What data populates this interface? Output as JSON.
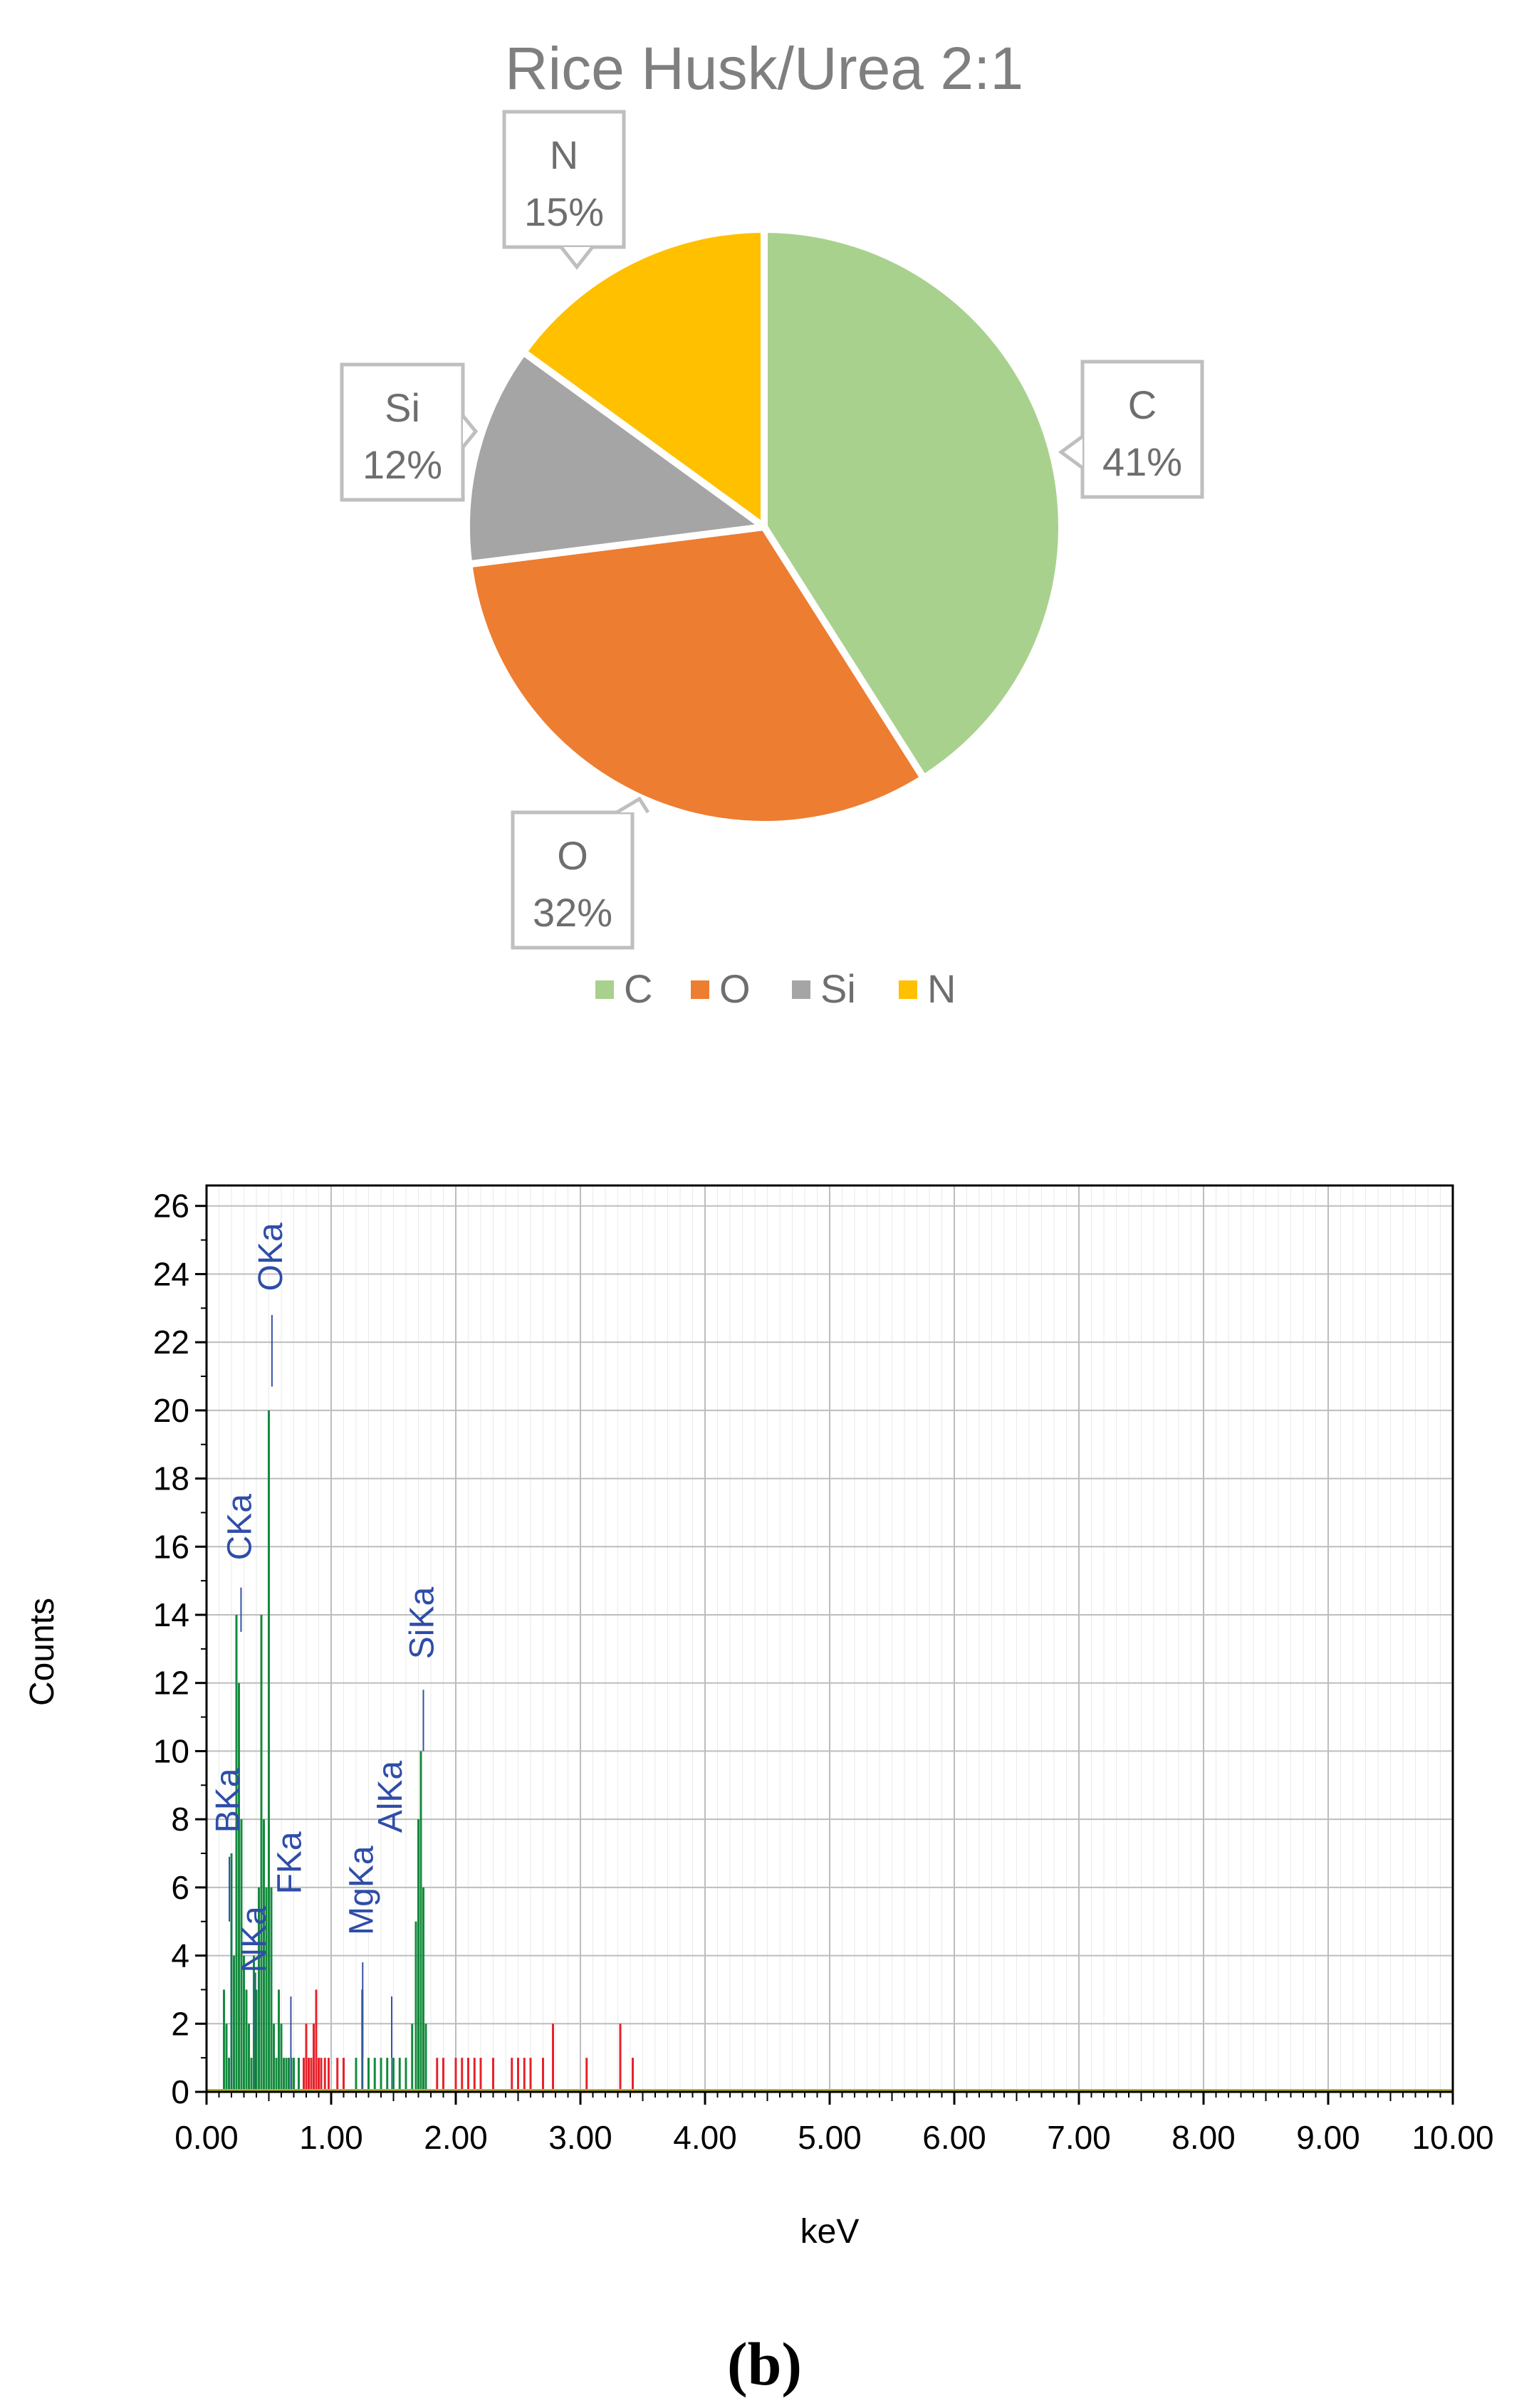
{
  "chart_data": [
    {
      "type": "pie",
      "title": "Rice Husk/Urea 2:1",
      "legend_position": "bottom",
      "slices": [
        {
          "label": "C",
          "value": 41,
          "display": "41%",
          "color": "#A9D18E"
        },
        {
          "label": "O",
          "value": 32,
          "display": "32%",
          "color": "#ED7D31"
        },
        {
          "label": "Si",
          "value": 12,
          "display": "12%",
          "color": "#A5A5A5"
        },
        {
          "label": "N",
          "value": 15,
          "display": "15%",
          "color": "#FFC000"
        }
      ]
    },
    {
      "type": "bar",
      "xlabel": "keV",
      "ylabel": "Counts",
      "xlim": [
        0,
        10
      ],
      "ylim": [
        0,
        26.6
      ],
      "grid": true,
      "x_ticks": [
        "0.00",
        "1.00",
        "2.00",
        "3.00",
        "4.00",
        "5.00",
        "6.00",
        "7.00",
        "8.00",
        "9.00",
        "10.00"
      ],
      "y_ticks": [
        "0",
        "2",
        "4",
        "6",
        "8",
        "10",
        "12",
        "14",
        "16",
        "18",
        "20",
        "22",
        "24",
        "26"
      ],
      "series": [
        {
          "color": "#138A3D",
          "points": [
            [
              0.14,
              3
            ],
            [
              0.16,
              2
            ],
            [
              0.18,
              1
            ],
            [
              0.2,
              7
            ],
            [
              0.22,
              4
            ],
            [
              0.24,
              14
            ],
            [
              0.26,
              12
            ],
            [
              0.28,
              8
            ],
            [
              0.3,
              4
            ],
            [
              0.32,
              3
            ],
            [
              0.34,
              2
            ],
            [
              0.36,
              1
            ],
            [
              0.38,
              4
            ],
            [
              0.4,
              3
            ],
            [
              0.42,
              6
            ],
            [
              0.44,
              14
            ],
            [
              0.46,
              8
            ],
            [
              0.48,
              6
            ],
            [
              0.5,
              20
            ],
            [
              0.52,
              6
            ],
            [
              0.54,
              2
            ],
            [
              0.56,
              1
            ],
            [
              0.58,
              3
            ],
            [
              0.6,
              2
            ],
            [
              0.62,
              1
            ],
            [
              0.64,
              1
            ],
            [
              0.66,
              1
            ],
            [
              0.68,
              1
            ],
            [
              0.7,
              1
            ],
            [
              0.74,
              1
            ],
            [
              1.2,
              1
            ],
            [
              1.25,
              3
            ],
            [
              1.3,
              1
            ],
            [
              1.35,
              1
            ],
            [
              1.4,
              1
            ],
            [
              1.45,
              1
            ],
            [
              1.5,
              1
            ],
            [
              1.55,
              1
            ],
            [
              1.6,
              1
            ],
            [
              1.65,
              2
            ],
            [
              1.68,
              5
            ],
            [
              1.7,
              8
            ],
            [
              1.72,
              10
            ],
            [
              1.74,
              6
            ],
            [
              1.76,
              2
            ]
          ]
        },
        {
          "color": "#E8202A",
          "points": [
            [
              0.78,
              1
            ],
            [
              0.8,
              2
            ],
            [
              0.82,
              1
            ],
            [
              0.84,
              1
            ],
            [
              0.86,
              2
            ],
            [
              0.88,
              3
            ],
            [
              0.9,
              1
            ],
            [
              0.92,
              1
            ],
            [
              0.95,
              1
            ],
            [
              0.98,
              1
            ],
            [
              1.05,
              1
            ],
            [
              1.1,
              1
            ],
            [
              1.85,
              1
            ],
            [
              1.9,
              1
            ],
            [
              2.0,
              1
            ],
            [
              2.05,
              1
            ],
            [
              2.1,
              1
            ],
            [
              2.15,
              1
            ],
            [
              2.2,
              1
            ],
            [
              2.3,
              1
            ],
            [
              2.45,
              1
            ],
            [
              2.5,
              1
            ],
            [
              2.55,
              1
            ],
            [
              2.6,
              1
            ],
            [
              2.7,
              1
            ],
            [
              2.78,
              2
            ],
            [
              3.05,
              1
            ],
            [
              3.32,
              2
            ],
            [
              3.42,
              1
            ]
          ]
        }
      ],
      "annotations": [
        {
          "label": "OKa",
          "x": 0.525,
          "line_top": 22.8,
          "line_bottom": 20.7,
          "text_bottom": 23.5
        },
        {
          "label": "CKa",
          "x": 0.277,
          "line_top": 14.8,
          "line_bottom": 13.5,
          "text_bottom": 15.6
        },
        {
          "label": "SiKa",
          "x": 1.74,
          "line_top": 11.8,
          "line_bottom": 10.0,
          "text_bottom": 12.7
        },
        {
          "label": "BKa",
          "x": 0.183,
          "line_top": 6.9,
          "line_bottom": 5.0,
          "text_bottom": 7.6
        },
        {
          "label": "NKa",
          "x": 0.392,
          "line_top": 3.5,
          "line_bottom": 1.5,
          "text_bottom": 3.5
        },
        {
          "label": "FKa",
          "x": 0.677,
          "line_top": 2.8,
          "line_bottom": 1.0,
          "text_bottom": 5.8
        },
        {
          "label": "MgKa",
          "x": 1.253,
          "line_top": 3.8,
          "line_bottom": 1.0,
          "text_bottom": 4.6
        },
        {
          "label": "AlKa",
          "x": 1.486,
          "line_top": 2.8,
          "line_bottom": 1.0,
          "text_bottom": 7.6
        }
      ],
      "fine_lines": [
        {
          "x": 0.2,
          "top": 6.8,
          "color": "#3651A5"
        },
        {
          "x": 0.392,
          "top": 3.5,
          "color": "#3651A5"
        },
        {
          "x": 0.677,
          "top": 2.8,
          "color": "#3651A5"
        },
        {
          "x": 1.253,
          "top": 3.8,
          "color": "#3651A5"
        },
        {
          "x": 1.486,
          "top": 2.8,
          "color": "#3651A5"
        }
      ]
    }
  ],
  "figure_label": "(b)"
}
